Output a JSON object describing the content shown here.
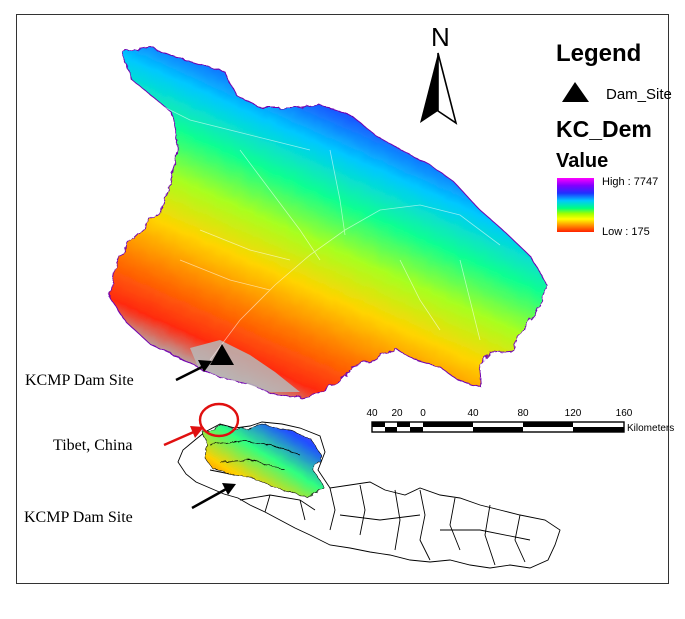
{
  "legend": {
    "title": "Legend",
    "dam_site_label": "Dam_Site",
    "layer_name": "KC_Dem",
    "value_label": "Value",
    "high_label": "High : 7747",
    "low_label": "Low : 175"
  },
  "north_arrow": {
    "label": "N"
  },
  "scale_bar": {
    "ticks": [
      "40",
      "20",
      "0",
      "40",
      "80",
      "120",
      "160"
    ],
    "unit": "Kilometers"
  },
  "annotations": {
    "main_dam": "KCMP Dam Site",
    "tibet": "Tibet, China",
    "inset_dam": "KCMP Dam Site"
  },
  "colors": {
    "elev_high": "#ff00ff",
    "elev_mid_high": "#1e40ff",
    "elev_mid": "#00ff80",
    "elev_mid_low": "#ffff00",
    "elev_low": "#ff2000",
    "dam_gray": "#a0a0a0",
    "tibet_circle": "#e01010"
  }
}
